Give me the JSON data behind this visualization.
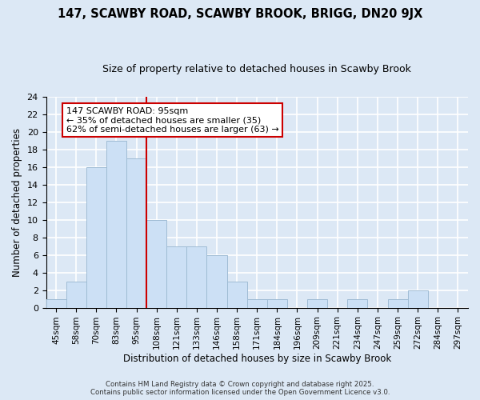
{
  "title": "147, SCAWBY ROAD, SCAWBY BROOK, BRIGG, DN20 9JX",
  "subtitle": "Size of property relative to detached houses in Scawby Brook",
  "xlabel": "Distribution of detached houses by size in Scawby Brook",
  "ylabel": "Number of detached properties",
  "bin_labels": [
    "45sqm",
    "58sqm",
    "70sqm",
    "83sqm",
    "95sqm",
    "108sqm",
    "121sqm",
    "133sqm",
    "146sqm",
    "158sqm",
    "171sqm",
    "184sqm",
    "196sqm",
    "209sqm",
    "221sqm",
    "234sqm",
    "247sqm",
    "259sqm",
    "272sqm",
    "284sqm",
    "297sqm"
  ],
  "bar_values": [
    1,
    3,
    16,
    19,
    17,
    10,
    7,
    7,
    6,
    3,
    1,
    1,
    0,
    1,
    0,
    1,
    0,
    1,
    2,
    0,
    0
  ],
  "bar_color": "#cce0f5",
  "bar_edge_color": "#9fbcd4",
  "highlight_line_color": "#cc0000",
  "annotation_line1": "147 SCAWBY ROAD: 95sqm",
  "annotation_line2": "← 35% of detached houses are smaller (35)",
  "annotation_line3": "62% of semi-detached houses are larger (63) →",
  "annotation_box_color": "#ffffff",
  "annotation_box_edge": "#cc0000",
  "ylim": [
    0,
    24
  ],
  "yticks": [
    0,
    2,
    4,
    6,
    8,
    10,
    12,
    14,
    16,
    18,
    20,
    22,
    24
  ],
  "background_color": "#dce8f5",
  "grid_color": "#ffffff",
  "footer_line1": "Contains HM Land Registry data © Crown copyright and database right 2025.",
  "footer_line2": "Contains public sector information licensed under the Open Government Licence v3.0."
}
